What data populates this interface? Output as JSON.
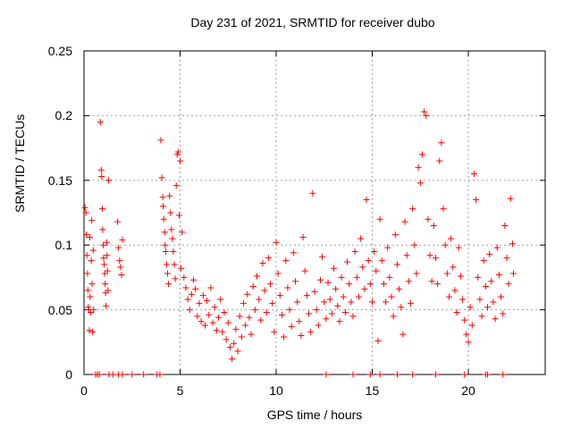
{
  "chart_data": {
    "type": "scatter",
    "title": "Day 231 of 2021, SRMTID for receiver dubo",
    "xlabel": "GPS time / hours",
    "ylabel": "SRMTID / TECUs",
    "xlim": [
      0,
      24
    ],
    "ylim": [
      0,
      0.25
    ],
    "xticks": [
      0,
      5,
      10,
      15,
      20
    ],
    "xtick_labels": [
      "0",
      "5",
      "10",
      "15",
      "20"
    ],
    "yticks": [
      0,
      0.05,
      0.1,
      0.15,
      0.2,
      0.25
    ],
    "ytick_labels": [
      "0",
      "0.05",
      "0.1",
      "0.15",
      "0.2",
      "0.25"
    ],
    "grid": true,
    "marker": "+",
    "color": "#ff0000",
    "series": [
      {
        "name": "SRMTID",
        "points": [
          [
            0.05,
            0.129
          ],
          [
            0.1,
            0.125
          ],
          [
            0.12,
            0.108
          ],
          [
            0.15,
            0.092
          ],
          [
            0.18,
            0.078
          ],
          [
            0.2,
            0.065
          ],
          [
            0.22,
            0.052
          ],
          [
            0.25,
            0.05
          ],
          [
            0.28,
            0.034
          ],
          [
            0.3,
            0.106
          ],
          [
            0.32,
            0.06
          ],
          [
            0.35,
            0.048
          ],
          [
            0.38,
            0.088
          ],
          [
            0.4,
            0.119
          ],
          [
            0.42,
            0.07
          ],
          [
            0.45,
            0.033
          ],
          [
            0.48,
            0.096
          ],
          [
            0.5,
            0.05
          ],
          [
            0.85,
            0.195
          ],
          [
            0.9,
            0.158
          ],
          [
            0.92,
            0.153
          ],
          [
            0.95,
            0.128
          ],
          [
            0.97,
            0.112
          ],
          [
            1.0,
            0.1
          ],
          [
            1.02,
            0.09
          ],
          [
            1.05,
            0.085
          ],
          [
            1.08,
            0.078
          ],
          [
            1.1,
            0.07
          ],
          [
            1.12,
            0.063
          ],
          [
            1.15,
            0.053
          ],
          [
            1.18,
            0.102
          ],
          [
            1.2,
            0.092
          ],
          [
            1.22,
            0.08
          ],
          [
            1.25,
            0.065
          ],
          [
            1.28,
            0.15
          ],
          [
            1.75,
            0.118
          ],
          [
            1.8,
            0.098
          ],
          [
            1.85,
            0.088
          ],
          [
            1.9,
            0.083
          ],
          [
            1.95,
            0.077
          ],
          [
            2.0,
            0.104
          ],
          [
            4.0,
            0.181
          ],
          [
            4.05,
            0.152
          ],
          [
            4.1,
            0.137
          ],
          [
            4.12,
            0.13
          ],
          [
            4.15,
            0.12
          ],
          [
            4.2,
            0.11
          ],
          [
            4.22,
            0.1
          ],
          [
            4.25,
            0.095
          ],
          [
            4.3,
            0.085
          ],
          [
            4.35,
            0.078
          ],
          [
            4.4,
            0.07
          ],
          [
            4.45,
            0.138
          ],
          [
            4.5,
            0.125
          ],
          [
            4.55,
            0.112
          ],
          [
            4.6,
            0.105
          ],
          [
            4.65,
            0.095
          ],
          [
            4.7,
            0.085
          ],
          [
            4.75,
            0.074
          ],
          [
            4.8,
            0.146
          ],
          [
            4.85,
            0.17
          ],
          [
            4.9,
            0.172
          ],
          [
            4.95,
            0.123
          ],
          [
            5.0,
            0.165
          ],
          [
            5.05,
            0.082
          ],
          [
            5.1,
            0.11
          ],
          [
            5.2,
            0.075
          ],
          [
            5.3,
            0.067
          ],
          [
            5.4,
            0.058
          ],
          [
            5.5,
            0.05
          ],
          [
            5.6,
            0.062
          ],
          [
            5.7,
            0.073
          ],
          [
            5.8,
            0.066
          ],
          [
            5.9,
            0.045
          ],
          [
            6.0,
            0.055
          ],
          [
            6.1,
            0.041
          ],
          [
            6.2,
            0.061
          ],
          [
            6.3,
            0.038
          ],
          [
            6.4,
            0.057
          ],
          [
            6.5,
            0.046
          ],
          [
            6.6,
            0.067
          ],
          [
            6.7,
            0.04
          ],
          [
            6.8,
            0.052
          ],
          [
            6.9,
            0.034
          ],
          [
            7.0,
            0.044
          ],
          [
            7.1,
            0.058
          ],
          [
            7.2,
            0.033
          ],
          [
            7.3,
            0.048
          ],
          [
            7.4,
            0.027
          ],
          [
            7.5,
            0.04
          ],
          [
            7.6,
            0.021
          ],
          [
            7.7,
            0.012
          ],
          [
            7.8,
            0.024
          ],
          [
            7.9,
            0.035
          ],
          [
            8.0,
            0.018
          ],
          [
            8.1,
            0.045
          ],
          [
            8.2,
            0.029
          ],
          [
            8.3,
            0.055
          ],
          [
            8.4,
            0.038
          ],
          [
            8.5,
            0.062
          ],
          [
            8.6,
            0.044
          ],
          [
            8.7,
            0.031
          ],
          [
            8.8,
            0.068
          ],
          [
            8.9,
            0.05
          ],
          [
            9.0,
            0.076
          ],
          [
            9.1,
            0.058
          ],
          [
            9.2,
            0.042
          ],
          [
            9.3,
            0.086
          ],
          [
            9.4,
            0.065
          ],
          [
            9.5,
            0.048
          ],
          [
            9.6,
            0.09
          ],
          [
            9.7,
            0.07
          ],
          [
            9.8,
            0.055
          ],
          [
            9.9,
            0.033
          ],
          [
            10.0,
            0.102
          ],
          [
            10.1,
            0.078
          ],
          [
            10.2,
            0.061
          ],
          [
            10.3,
            0.046
          ],
          [
            10.4,
            0.029
          ],
          [
            10.5,
            0.088
          ],
          [
            10.6,
            0.067
          ],
          [
            10.7,
            0.05
          ],
          [
            10.8,
            0.037
          ],
          [
            10.9,
            0.094
          ],
          [
            11.0,
            0.072
          ],
          [
            11.1,
            0.056
          ],
          [
            11.2,
            0.041
          ],
          [
            11.3,
            0.03
          ],
          [
            11.4,
            0.106
          ],
          [
            11.5,
            0.08
          ],
          [
            11.6,
            0.061
          ],
          [
            11.7,
            0.047
          ],
          [
            11.8,
            0.033
          ],
          [
            11.9,
            0.14
          ],
          [
            12.0,
            0.064
          ],
          [
            12.1,
            0.05
          ],
          [
            12.2,
            0.038
          ],
          [
            12.3,
            0.073
          ],
          [
            12.4,
            0.091
          ],
          [
            12.5,
            0.056
          ],
          [
            12.6,
            0.043
          ],
          [
            12.7,
            0.071
          ],
          [
            12.8,
            0.058
          ],
          [
            12.9,
            0.047
          ],
          [
            13.0,
            0.082
          ],
          [
            13.1,
            0.066
          ],
          [
            13.2,
            0.053
          ],
          [
            13.3,
            0.041
          ],
          [
            13.4,
            0.075
          ],
          [
            13.5,
            0.06
          ],
          [
            13.6,
            0.048
          ],
          [
            13.7,
            0.087
          ],
          [
            13.8,
            0.07
          ],
          [
            13.9,
            0.056
          ],
          [
            14.0,
            0.045
          ],
          [
            14.1,
            0.095
          ],
          [
            14.2,
            0.075
          ],
          [
            14.3,
            0.06
          ],
          [
            14.4,
            0.105
          ],
          [
            14.5,
            0.083
          ],
          [
            14.6,
            0.066
          ],
          [
            14.7,
            0.135
          ],
          [
            14.8,
            0.088
          ],
          [
            14.9,
            0.07
          ],
          [
            15.0,
            0.056
          ],
          [
            15.1,
            0.095
          ],
          [
            15.2,
            0.08
          ],
          [
            15.3,
            0.026
          ],
          [
            15.4,
            0.12
          ],
          [
            15.5,
            0.088
          ],
          [
            15.6,
            0.07
          ],
          [
            15.7,
            0.056
          ],
          [
            15.8,
            0.098
          ],
          [
            15.9,
            0.075
          ],
          [
            16.0,
            0.06
          ],
          [
            16.1,
            0.045
          ],
          [
            16.2,
            0.108
          ],
          [
            16.3,
            0.085
          ],
          [
            16.4,
            0.066
          ],
          [
            16.5,
            0.052
          ],
          [
            16.6,
            0.031
          ],
          [
            16.7,
            0.118
          ],
          [
            16.8,
            0.092
          ],
          [
            16.9,
            0.072
          ],
          [
            17.0,
            0.055
          ],
          [
            17.1,
            0.128
          ],
          [
            17.2,
            0.1
          ],
          [
            17.3,
            0.078
          ],
          [
            17.4,
            0.16
          ],
          [
            17.5,
            0.148
          ],
          [
            17.6,
            0.17
          ],
          [
            17.7,
            0.203
          ],
          [
            17.8,
            0.2
          ],
          [
            17.9,
            0.12
          ],
          [
            18.0,
            0.092
          ],
          [
            18.1,
            0.072
          ],
          [
            18.2,
            0.115
          ],
          [
            18.3,
            0.09
          ],
          [
            18.4,
            0.07
          ],
          [
            18.5,
            0.165
          ],
          [
            18.6,
            0.179
          ],
          [
            18.7,
            0.128
          ],
          [
            18.8,
            0.1
          ],
          [
            18.9,
            0.078
          ],
          [
            19.0,
            0.06
          ],
          [
            19.1,
            0.105
          ],
          [
            19.2,
            0.083
          ],
          [
            19.3,
            0.065
          ],
          [
            19.4,
            0.048
          ],
          [
            19.5,
            0.098
          ],
          [
            19.6,
            0.076
          ],
          [
            19.7,
            0.058
          ],
          [
            19.8,
            0.042
          ],
          [
            19.9,
            0.031
          ],
          [
            20.0,
            0.025
          ],
          [
            20.1,
            0.052
          ],
          [
            20.2,
            0.038
          ],
          [
            20.3,
            0.155
          ],
          [
            20.4,
            0.135
          ],
          [
            20.5,
            0.075
          ],
          [
            20.6,
            0.058
          ],
          [
            20.7,
            0.045
          ],
          [
            20.8,
            0.088
          ],
          [
            20.9,
            0.068
          ],
          [
            21.0,
            0.052
          ],
          [
            21.1,
            0.093
          ],
          [
            21.2,
            0.072
          ],
          [
            21.3,
            0.056
          ],
          [
            21.4,
            0.043
          ],
          [
            21.5,
            0.098
          ],
          [
            21.6,
            0.077
          ],
          [
            21.7,
            0.06
          ],
          [
            21.8,
            0.047
          ],
          [
            21.9,
            0.115
          ],
          [
            22.0,
            0.09
          ],
          [
            22.1,
            0.07
          ],
          [
            22.2,
            0.136
          ],
          [
            22.3,
            0.101
          ],
          [
            22.35,
            0.078
          ],
          [
            0.6,
            0.0
          ],
          [
            0.7,
            0.0
          ],
          [
            0.8,
            0.0
          ],
          [
            1.3,
            0.0
          ],
          [
            1.5,
            0.0
          ],
          [
            1.8,
            0.0
          ],
          [
            2.0,
            0.0
          ],
          [
            2.5,
            0.0
          ],
          [
            3.1,
            0.0
          ],
          [
            3.8,
            0.0
          ],
          [
            3.95,
            0.0
          ],
          [
            12.6,
            0.0
          ],
          [
            14.0,
            0.0
          ],
          [
            14.9,
            0.0
          ],
          [
            15.4,
            0.0
          ],
          [
            16.3,
            0.0
          ],
          [
            17.1,
            0.0
          ],
          [
            18.3,
            0.0
          ],
          [
            19.8,
            0.0
          ],
          [
            20.9,
            0.0
          ],
          [
            21.0,
            0.0
          ],
          [
            21.8,
            0.0
          ]
        ]
      }
    ]
  }
}
